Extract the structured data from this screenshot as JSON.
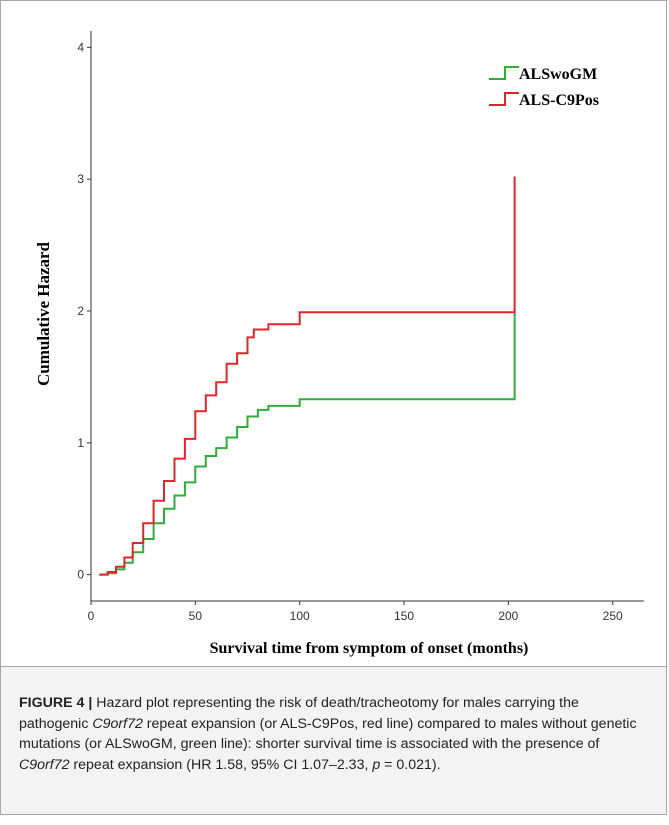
{
  "chart_data": {
    "type": "line",
    "xlabel": "Survival time from symptom of onset (months)",
    "ylabel": "Cumulative Hazard",
    "xlim": [
      0,
      265
    ],
    "ylim": [
      -0.2,
      4.2
    ],
    "x_ticks": [
      "0",
      "50",
      "100",
      "150",
      "200",
      "250"
    ],
    "y_ticks": [
      "0",
      "1",
      "2",
      "3",
      "4"
    ],
    "legend_position": "top-right",
    "series": [
      {
        "name": "ALSwoGM",
        "color": "#2fae3c",
        "step": true,
        "points": [
          [
            4,
            0
          ],
          [
            8,
            0.01
          ],
          [
            12,
            0.04
          ],
          [
            16,
            0.09
          ],
          [
            20,
            0.17
          ],
          [
            25,
            0.27
          ],
          [
            30,
            0.39
          ],
          [
            35,
            0.5
          ],
          [
            40,
            0.6
          ],
          [
            45,
            0.7
          ],
          [
            50,
            0.82
          ],
          [
            55,
            0.9
          ],
          [
            60,
            0.96
          ],
          [
            65,
            1.04
          ],
          [
            70,
            1.12
          ],
          [
            75,
            1.2
          ],
          [
            80,
            1.25
          ],
          [
            85,
            1.28
          ],
          [
            100,
            1.33
          ],
          [
            203,
            1.33
          ],
          [
            203,
            2.0
          ]
        ]
      },
      {
        "name": "ALS-C9Pos",
        "color": "#e0262a",
        "step": true,
        "points": [
          [
            4,
            0
          ],
          [
            8,
            0.02
          ],
          [
            12,
            0.06
          ],
          [
            16,
            0.13
          ],
          [
            20,
            0.24
          ],
          [
            25,
            0.39
          ],
          [
            30,
            0.56
          ],
          [
            35,
            0.71
          ],
          [
            40,
            0.88
          ],
          [
            45,
            1.03
          ],
          [
            50,
            1.24
          ],
          [
            55,
            1.36
          ],
          [
            60,
            1.46
          ],
          [
            65,
            1.6
          ],
          [
            70,
            1.68
          ],
          [
            75,
            1.8
          ],
          [
            78,
            1.86
          ],
          [
            85,
            1.9
          ],
          [
            100,
            1.99
          ],
          [
            203,
            1.99
          ],
          [
            203,
            3.02
          ]
        ]
      }
    ]
  },
  "caption": {
    "label": "FIGURE 4 |",
    "part1": " Hazard plot representing the risk of death/tracheotomy for males carrying the pathogenic ",
    "gene1": "C9orf72",
    "part2": " repeat expansion (or ALS-C9Pos, red line) compared to males without genetic mutations (or ALSwoGM, green line): shorter survival time is associated with the presence of ",
    "gene2": "C9orf72",
    "part3": " repeat expansion (HR 1.58, 95% CI 1.07–2.33, ",
    "p_symbol": "p",
    "part4": " = 0.021)."
  }
}
